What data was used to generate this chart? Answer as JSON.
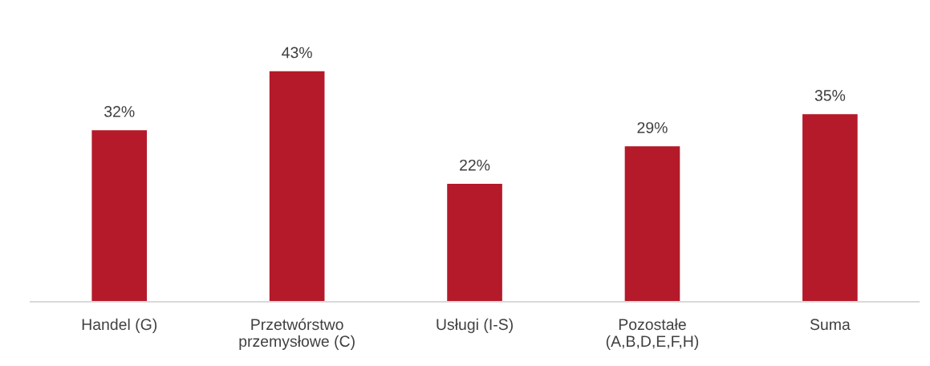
{
  "chart_data": {
    "type": "bar",
    "categories": [
      "Handel (G)",
      "Przetwórstwo\nprzemysłowe (C)",
      "Usługi (I-S)",
      "Pozostałe\n(A,B,D,E,F,H)",
      "Suma"
    ],
    "values": [
      32,
      43,
      22,
      29,
      35
    ],
    "value_labels": [
      "32%",
      "43%",
      "22%",
      "29%",
      "35%"
    ],
    "color": "#b41a2a",
    "tick_labels": "x",
    "grid": false
  }
}
